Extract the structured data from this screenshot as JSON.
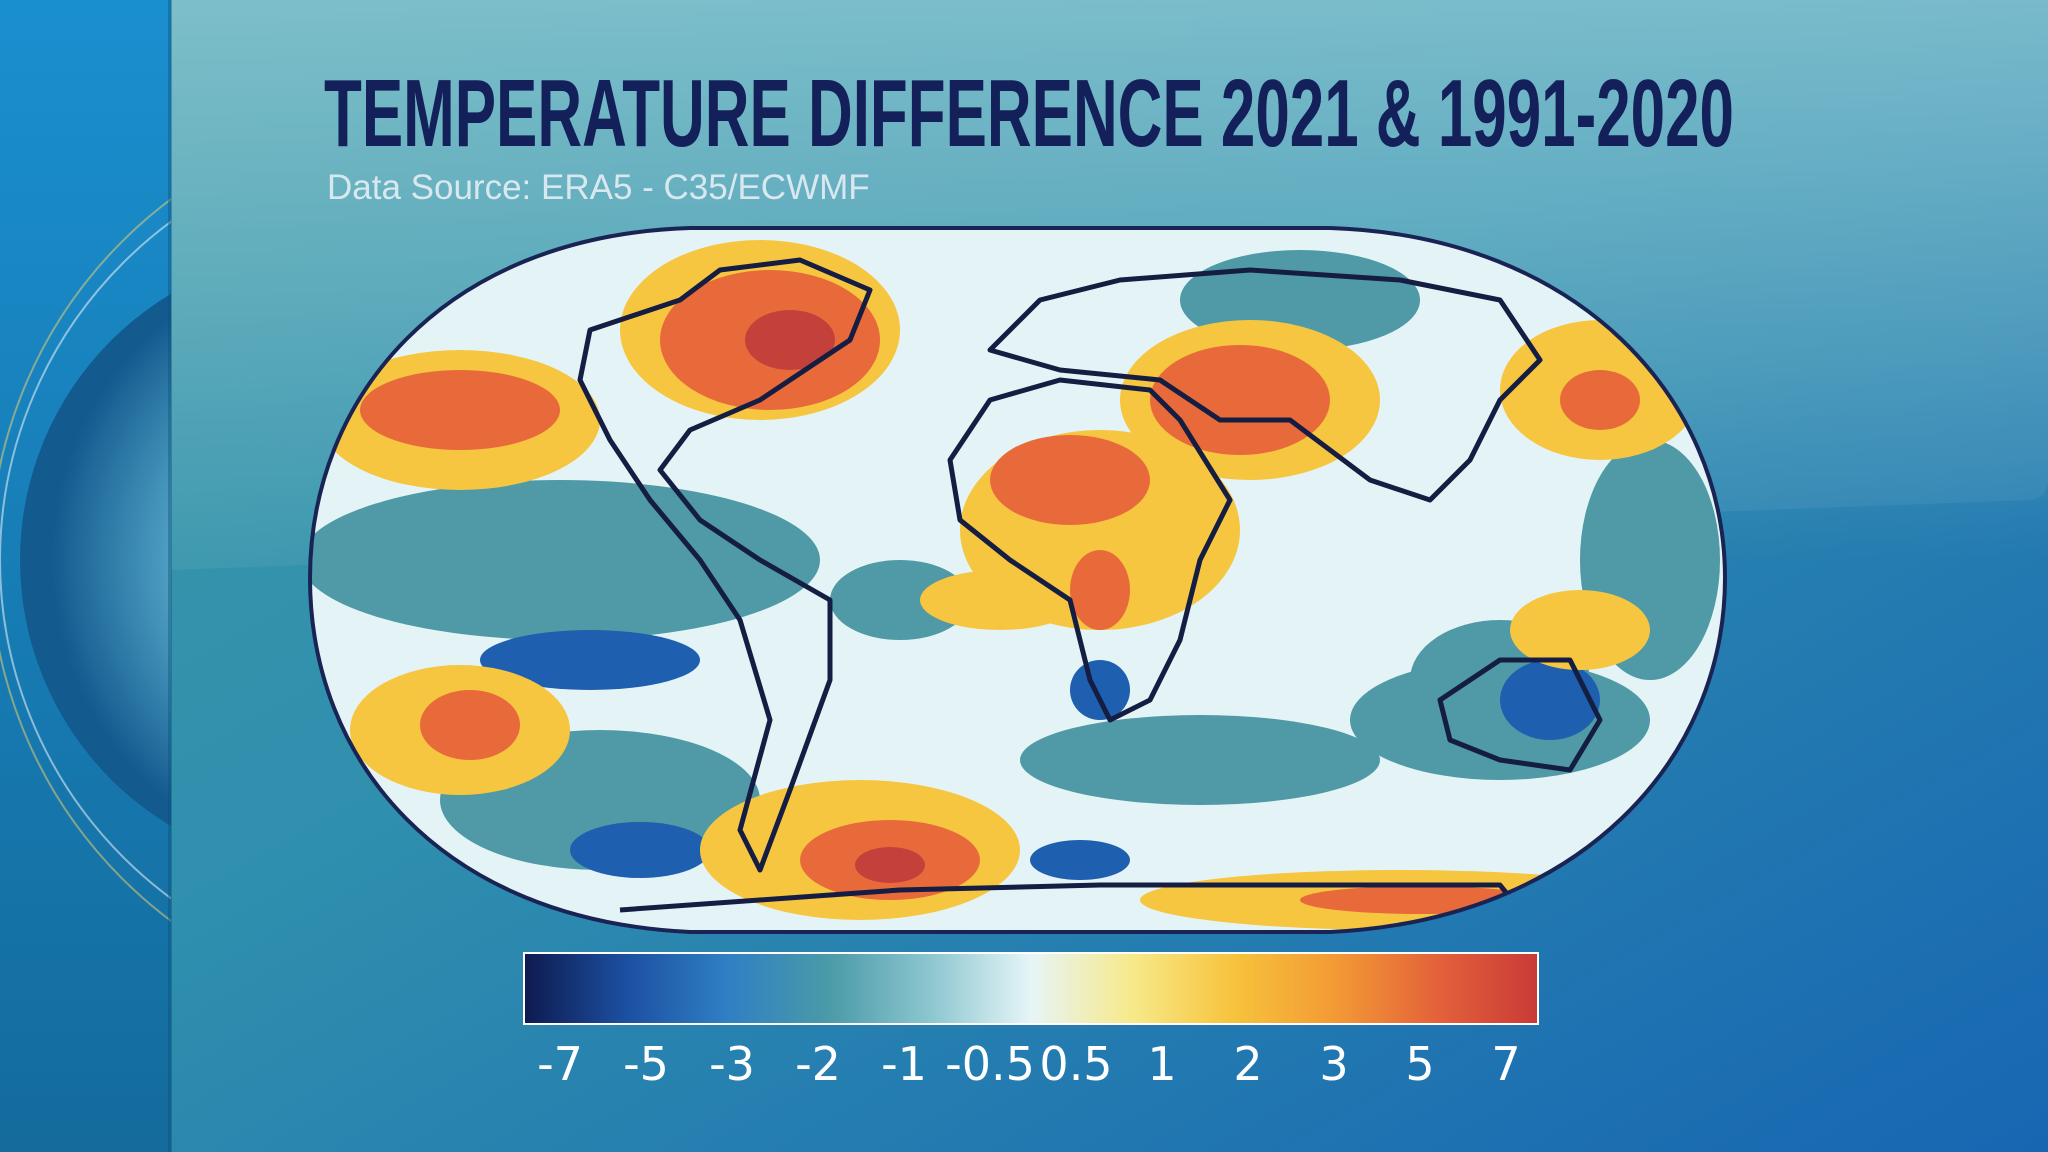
{
  "header": {
    "title": "TEMPERATURE DIFFERENCE 2021 & 1991-2020",
    "subtitle": "Data Source: ERA5 - C35/ECWMF"
  },
  "colorbar": {
    "ticks": [
      -7,
      -5,
      -3,
      -2,
      -1,
      -0.5,
      0.5,
      1,
      2,
      3,
      5,
      7
    ],
    "colors": [
      "#0e1a4f",
      "#1c4fa0",
      "#2f7fc4",
      "#4a9aa8",
      "#8cc6cf",
      "#e6f5f7",
      "#f7e98a",
      "#f7c33c",
      "#f39a35",
      "#e3623a",
      "#c93a37"
    ]
  }
}
